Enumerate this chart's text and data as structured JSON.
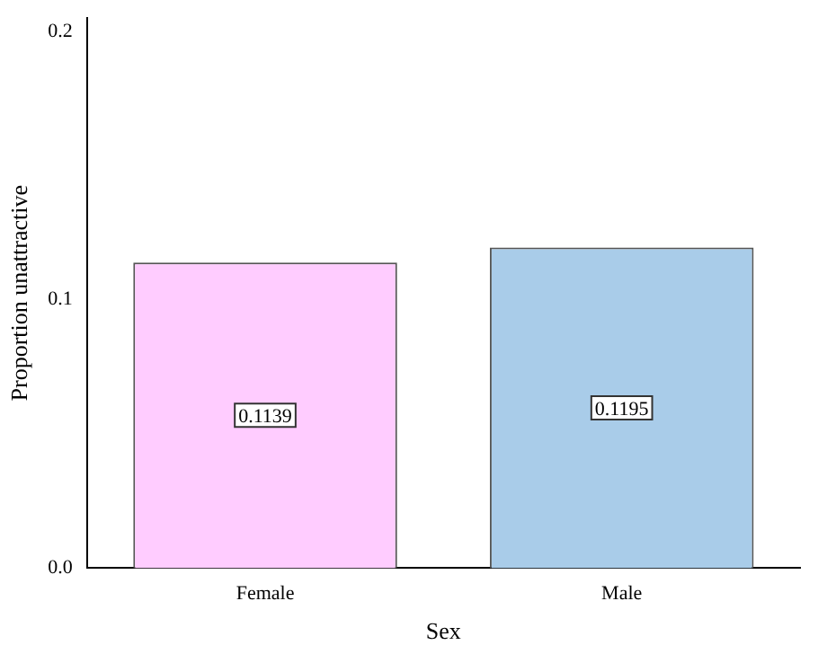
{
  "chart_data": {
    "type": "bar",
    "xlabel": "Sex",
    "ylabel": "Proportion unattractive",
    "categories": [
      "Female",
      "Male"
    ],
    "values": [
      0.1139,
      0.1195
    ],
    "colors": [
      "#ffccff",
      "#a9cce9"
    ],
    "ylim": [
      0,
      0.205
    ],
    "yticks": [
      {
        "value": 0,
        "label": "0.0"
      },
      {
        "value": 0.1,
        "label": "0.1"
      },
      {
        "value": 0.2,
        "label": "0.2"
      }
    ],
    "data_labels": true,
    "grid": false,
    "legend": false
  }
}
